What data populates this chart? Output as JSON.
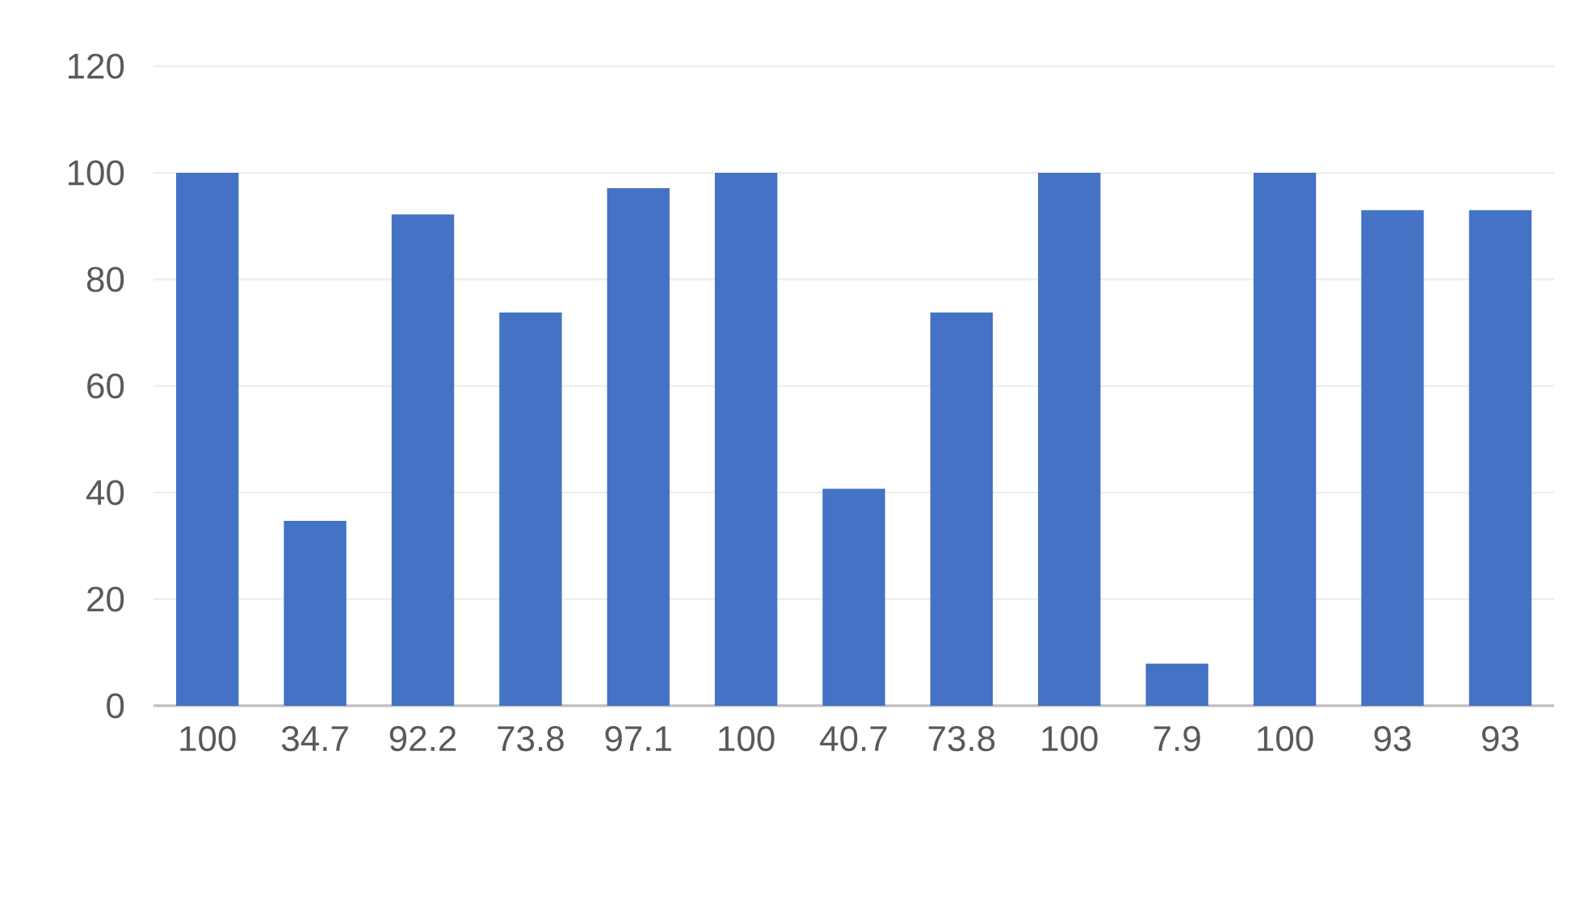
{
  "chart_data": {
    "type": "bar",
    "categories": [
      "100",
      "34.7",
      "92.2",
      "73.8",
      "97.1",
      "100",
      "40.7",
      "73.8",
      "100",
      "7.9",
      "100",
      "93",
      "93"
    ],
    "values": [
      100,
      34.7,
      92.2,
      73.8,
      97.1,
      100,
      40.7,
      73.8,
      100,
      7.9,
      100,
      93,
      93
    ],
    "color": "#4472c4",
    "ylim": [
      0,
      120
    ],
    "yticks": [
      0,
      20,
      40,
      60,
      80,
      100,
      120
    ],
    "grid": "y"
  }
}
